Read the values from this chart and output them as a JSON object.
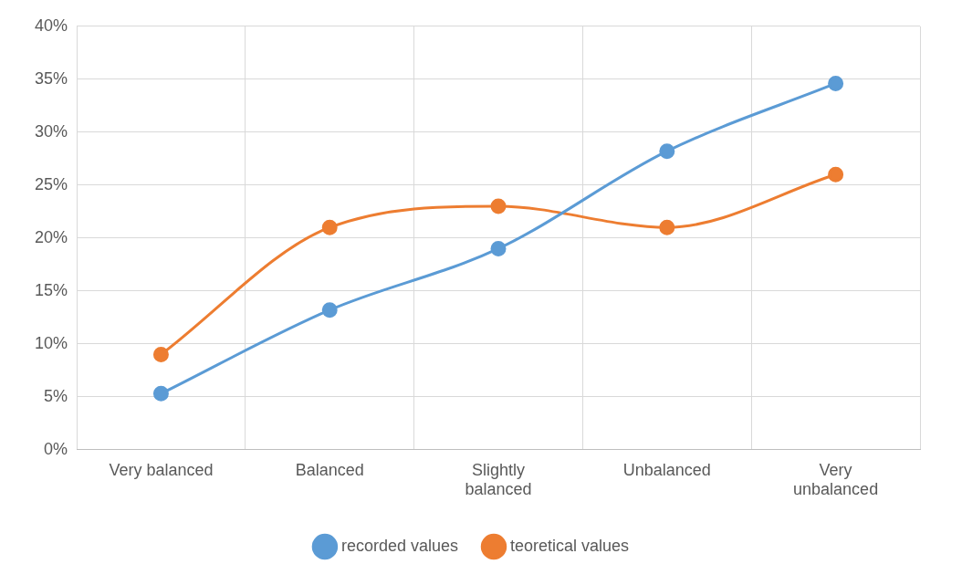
{
  "chart_data": {
    "type": "line",
    "categories": [
      "Very balanced",
      "Balanced",
      "Slightly balanced",
      "Unbalanced",
      "Very unbalanced"
    ],
    "series": [
      {
        "name": "recorded values",
        "color": "#5b9bd5",
        "values": [
          5.3,
          13.2,
          19,
          28.2,
          34.6
        ]
      },
      {
        "name": "teoretical values",
        "color": "#ed7d31",
        "values": [
          9,
          21,
          23,
          21,
          26
        ]
      }
    ],
    "ylim": [
      0,
      40
    ],
    "yticks": [
      {
        "value": 0,
        "label": "0%"
      },
      {
        "value": 5,
        "label": "5%"
      },
      {
        "value": 10,
        "label": "10%"
      },
      {
        "value": 15,
        "label": "15%"
      },
      {
        "value": 20,
        "label": "20%"
      },
      {
        "value": 25,
        "label": "25%"
      },
      {
        "value": 30,
        "label": "30%"
      },
      {
        "value": 35,
        "label": "35%"
      },
      {
        "value": 40,
        "label": "40%"
      }
    ],
    "grid": true,
    "legend": "bottom",
    "marker": "circle",
    "line_style": "solid"
  }
}
